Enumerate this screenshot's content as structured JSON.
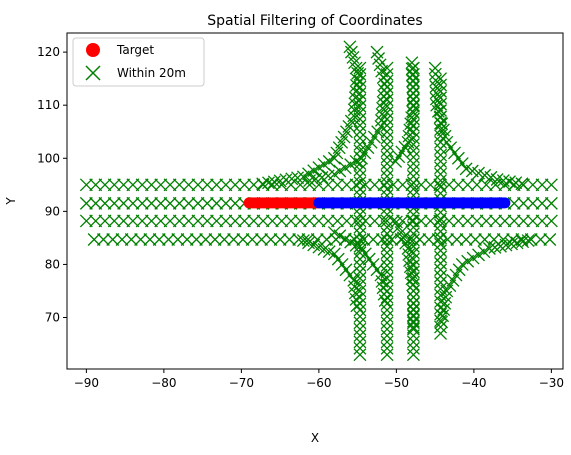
{
  "chart_data": {
    "type": "scatter",
    "title": "Spatial Filtering of Coordinates",
    "xlabel": "X",
    "ylabel": "Y",
    "xlim": [
      -92.5,
      -28.5
    ],
    "ylim": [
      60.3,
      123.6
    ],
    "xticks": [
      -90,
      -80,
      -70,
      -60,
      -50,
      -40,
      -30
    ],
    "yticks": [
      70,
      80,
      90,
      100,
      110,
      120
    ],
    "xtick_labels": [
      "−90",
      "−80",
      "−70",
      "−60",
      "−50",
      "−40",
      "−30"
    ],
    "ytick_labels": [
      "70",
      "80",
      "90",
      "100",
      "110",
      "120"
    ],
    "grid": false,
    "legend_position": "top-left",
    "colors": {
      "target": "#ff0000",
      "within": "#008000",
      "path": "#0000ff"
    },
    "legend": [
      {
        "label": "Target",
        "marker": "circle",
        "color": "#ff0000"
      },
      {
        "label": "Within 20m",
        "marker": "x",
        "color": "#008000"
      }
    ],
    "within_lanes": {
      "horizontal": [
        {
          "y": 95.0,
          "x_start": -90,
          "x_end": -30,
          "step": 1.2
        },
        {
          "y": 91.5,
          "x_start": -90,
          "x_end": -30,
          "step": 1.2
        },
        {
          "y": 88.2,
          "x_start": -90,
          "x_end": -30,
          "step": 1.2
        },
        {
          "y": 84.7,
          "x_start": -89,
          "x_end": -30,
          "step": 1.2
        }
      ],
      "vertical": [
        {
          "x": -54.7,
          "y_start": 63,
          "y_end": 117,
          "step": 1.2
        },
        {
          "x": -51.2,
          "y_start": 63,
          "y_end": 117,
          "step": 1.2
        },
        {
          "x": -47.8,
          "y_start": 63,
          "y_end": 117,
          "step": 1.2
        },
        {
          "x": -44.3,
          "y_start": 67,
          "y_end": 116,
          "step": 1.2
        }
      ],
      "curves": [
        [
          [
            -56,
            121
          ],
          [
            -55,
            116
          ],
          [
            -55.5,
            108
          ],
          [
            -58,
            100
          ],
          [
            -62,
            96.5
          ],
          [
            -68,
            95
          ]
        ],
        [
          [
            -52.5,
            120
          ],
          [
            -51.5,
            114
          ],
          [
            -52,
            106
          ],
          [
            -54.5,
            100
          ],
          [
            -58,
            97
          ],
          [
            -62,
            95.5
          ]
        ],
        [
          [
            -48,
            118
          ],
          [
            -47.8,
            110
          ],
          [
            -48.5,
            103
          ],
          [
            -50.5,
            98.5
          ]
        ],
        [
          [
            -45,
            117
          ],
          [
            -44.8,
            110
          ],
          [
            -43.5,
            103
          ],
          [
            -41,
            98
          ],
          [
            -37,
            96
          ],
          [
            -33,
            95
          ]
        ],
        [
          [
            -62,
            84.5
          ],
          [
            -58,
            82
          ],
          [
            -55.5,
            77
          ],
          [
            -55,
            71
          ]
        ],
        [
          [
            -58,
            86
          ],
          [
            -54.5,
            83
          ],
          [
            -52,
            78
          ],
          [
            -51.3,
            72
          ]
        ],
        [
          [
            -50,
            88
          ],
          [
            -48.5,
            83
          ],
          [
            -47.8,
            75
          ],
          [
            -47.8,
            67
          ]
        ],
        [
          [
            -33,
            84.5
          ],
          [
            -38,
            83
          ],
          [
            -41.5,
            80
          ],
          [
            -43.5,
            75
          ],
          [
            -44.3,
            68
          ]
        ]
      ]
    },
    "target_line": {
      "y": 91.6,
      "x_start": -69,
      "x_end": -60,
      "step": 0.25
    },
    "path_line": {
      "y": 91.6,
      "x_start": -60,
      "x_end": -36,
      "step": 0.25
    }
  }
}
